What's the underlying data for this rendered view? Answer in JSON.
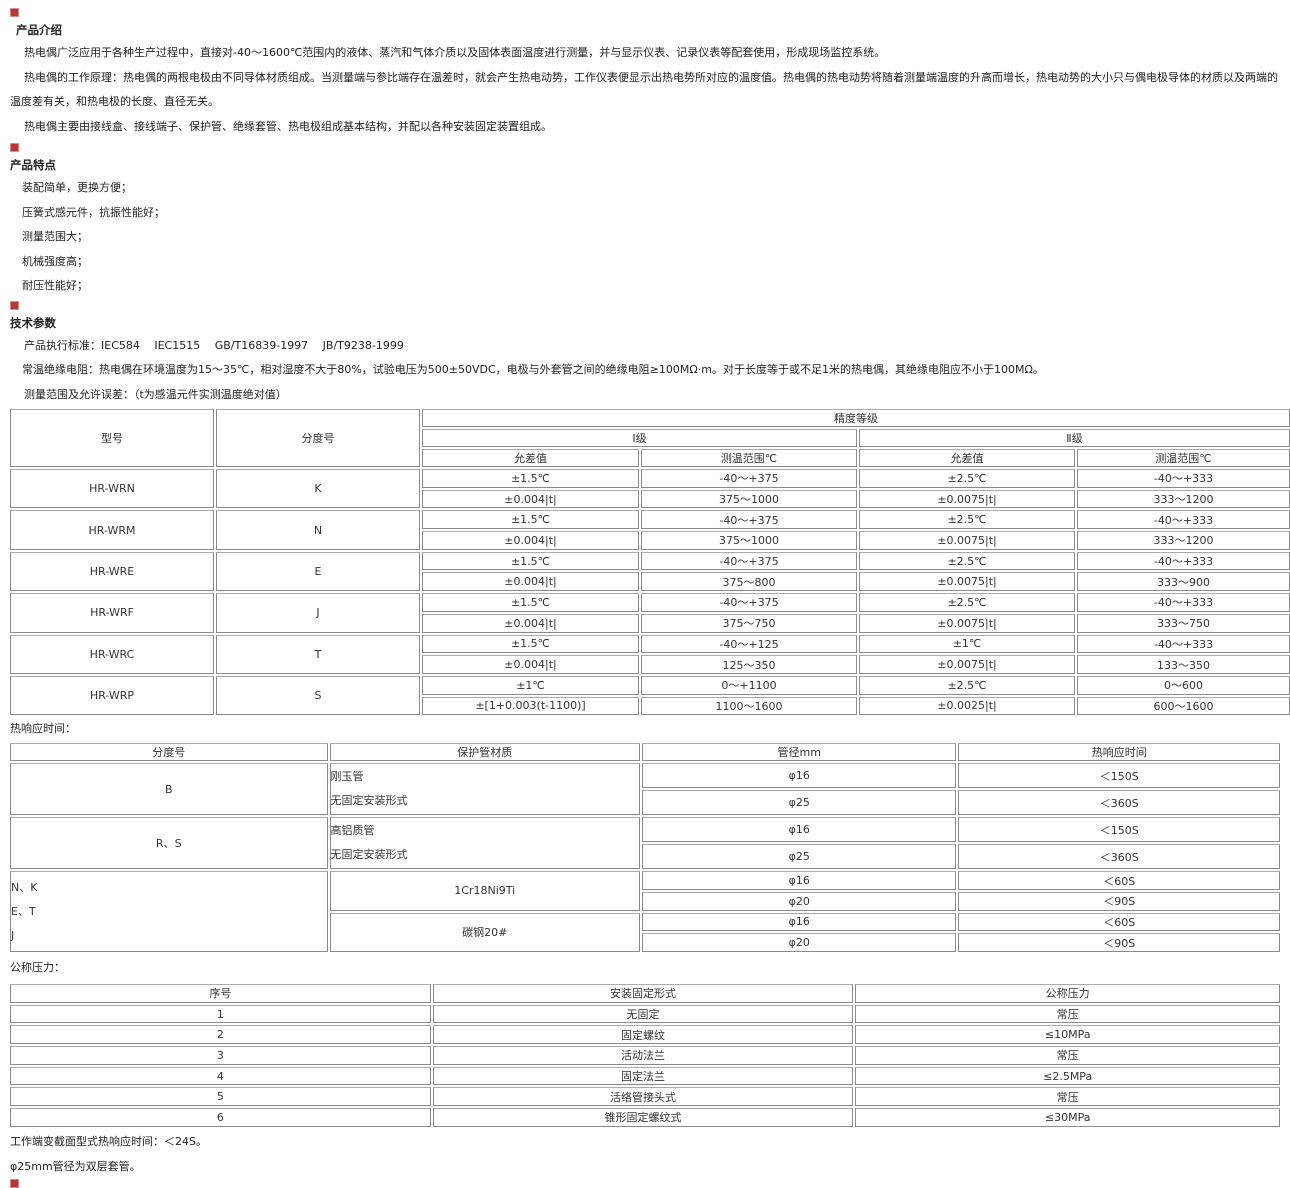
{
  "intro": {
    "title": "产品介绍",
    "paragraphs": [
      "热电偶广泛应用于各种生产过程中，直接对-40～1600℃范围内的液体、蒸汽和气体介质以及固体表面温度进行测量，并与显示仪表、记录仪表等配套使用，形成现场监控系统。",
      "热电偶的工作原理：热电偶的两根电极由不同导体材质组成。当测量端与参比端存在温差时，就会产生热电动势，工作仪表便显示出热电势所对应的温度值。热电偶的热电动势将随着测量端温度的升高而增长，热电动势的大小只与偶电极导体的材质以及两端的温度差有关，和热电极的长度、直径无关。",
      "热电偶主要由接线盒、接线端子、保护管、绝缘套管、热电极组成基本结构，并配以各种安装固定装置组成。"
    ]
  },
  "features": {
    "title": "产品特点",
    "items": [
      "装配简单，更换方便；",
      "压簧式感元件，抗振性能好；",
      "测量范围大；",
      "机械强度高；",
      "耐压性能好；"
    ]
  },
  "specs": {
    "title": "技术参数",
    "lines": [
      "产品执行标准：IEC584　 IEC1515　 GB/T16839-1997　 JB/T9238-1999",
      "常温绝缘电阻：热电偶在环境温度为15～35℃，相对湿度不大于80%，试验电压为500±50VDC，电极与外套管之间的绝缘电阻≥100MΩ·m。对于长度等于或不足1米的热电偶，其绝缘电阻应不小于100MΩ。",
      "测量范围及允许误差：（t为感温元件实测温度绝对值）"
    ]
  },
  "accuracy_table": {
    "headers": {
      "model": "型号",
      "graduation": "分度号",
      "accuracy": "精度等级",
      "class1": "Ⅰ级",
      "class2": "Ⅱ级",
      "tolerance": "允差值",
      "range": "测温范围℃"
    },
    "rows": [
      {
        "model": "HR-WRN",
        "grad": "K",
        "sub": [
          [
            "±1.5℃",
            "-40～+375",
            "±2.5℃",
            "-40～+333"
          ],
          [
            "±0.004|t|",
            "375～1000",
            "±0.0075|t|",
            "333～1200"
          ]
        ]
      },
      {
        "model": "HR-WRM",
        "grad": "N",
        "sub": [
          [
            "±1.5℃",
            "-40～+375",
            "±2.5℃",
            "-40～+333"
          ],
          [
            "±0.004|t|",
            "375～1000",
            "±0.0075|t|",
            "333～1200"
          ]
        ]
      },
      {
        "model": "HR-WRE",
        "grad": "E",
        "sub": [
          [
            "±1.5℃",
            "-40～+375",
            "±2.5℃",
            "-40～+333"
          ],
          [
            "±0.004|t|",
            "375～800",
            "±0.0075|t|",
            "333～900"
          ]
        ]
      },
      {
        "model": "HR-WRF",
        "grad": "J",
        "sub": [
          [
            "±1.5℃",
            "-40～+375",
            "±2.5℃",
            "-40～+333"
          ],
          [
            "±0.004|t|",
            "375～750",
            "±0.0075|t|",
            "333～750"
          ]
        ]
      },
      {
        "model": "HR-WRC",
        "grad": "T",
        "sub": [
          [
            "±1.5℃",
            "-40～+125",
            "±1℃",
            "-40～+333"
          ],
          [
            "±0.004|t|",
            "125～350",
            "±0.0075|t|",
            "133～350"
          ]
        ]
      },
      {
        "model": "HR-WRP",
        "grad": "S",
        "sub": [
          [
            "±1℃",
            "0～+1100",
            "±2.5℃",
            "0～600"
          ],
          [
            "±[1+0.003(t-1100)]",
            "1100～1600",
            "±0.0025|t|",
            "600～1600"
          ]
        ]
      }
    ]
  },
  "response": {
    "title": "热响应时间：",
    "headers": [
      "分度号",
      "保护管材质",
      "管径mm",
      "热响应时间"
    ],
    "groups": [
      {
        "grad": [
          "B"
        ],
        "materials": [
          {
            "lines": [
              "刚玉管",
              "无固定安装形式"
            ],
            "rows": [
              [
                "φ16",
                "＜150S"
              ],
              [
                "φ25",
                "＜360S"
              ]
            ]
          }
        ]
      },
      {
        "grad": [
          "R、S"
        ],
        "materials": [
          {
            "lines": [
              "高铝质管",
              "无固定安装形式"
            ],
            "rows": [
              [
                "φ16",
                "＜150S"
              ],
              [
                "φ25",
                "＜360S"
              ]
            ]
          }
        ]
      },
      {
        "grad": [
          "N、K",
          "E、T",
          "J"
        ],
        "materials": [
          {
            "lines": [
              "1Cr18Ni9Ti"
            ],
            "rows": [
              [
                "φ16",
                "＜60S"
              ],
              [
                "φ20",
                "＜90S"
              ]
            ]
          },
          {
            "lines": [
              "碳钢20#"
            ],
            "rows": [
              [
                "φ16",
                "＜60S"
              ],
              [
                "φ20",
                "＜90S"
              ]
            ]
          }
        ]
      }
    ]
  },
  "pressure": {
    "title": "公称压力：",
    "headers": [
      "序号",
      "安装固定形式",
      "公称压力"
    ],
    "rows": [
      [
        "1",
        "无固定",
        "常压"
      ],
      [
        "2",
        "固定螺纹",
        "≤10MPa"
      ],
      [
        "3",
        "活动法兰",
        "常压"
      ],
      [
        "4",
        "固定法兰",
        "≤2.5MPa"
      ],
      [
        "5",
        "活络管接头式",
        "常压"
      ],
      [
        "6",
        "锥形固定螺纹式",
        "≤30MPa"
      ]
    ]
  },
  "notes": [
    "工作端变截面型式热响应时间：＜24S。",
    "φ25mm管径为双层套管。"
  ],
  "colors": {
    "icon": "#b33333",
    "border": "#8a8a8a"
  }
}
